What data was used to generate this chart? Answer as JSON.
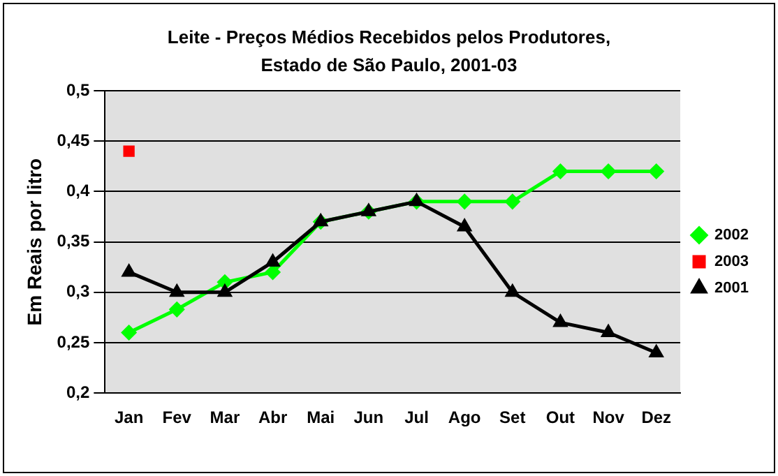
{
  "chart_data": {
    "type": "line",
    "title": "Leite - Preços Médios Recebidos pelos Produtores, Estado de São Paulo, 2001-03",
    "ylabel": "Em Reais por litro",
    "categories": [
      "Jan",
      "Fev",
      "Mar",
      "Abr",
      "Mai",
      "Jun",
      "Jul",
      "Ago",
      "Set",
      "Out",
      "Nov",
      "Dez"
    ],
    "series": [
      {
        "name": "2002",
        "color": "#00ff00",
        "marker": "diamond",
        "values": [
          0.26,
          0.283,
          0.31,
          0.32,
          0.37,
          0.38,
          0.39,
          0.39,
          0.39,
          0.42,
          0.42,
          0.42
        ]
      },
      {
        "name": "2003",
        "color": "#ff0000",
        "marker": "square",
        "values": [
          0.44,
          null,
          null,
          null,
          null,
          null,
          null,
          null,
          null,
          null,
          null,
          null
        ]
      },
      {
        "name": "2001",
        "color": "#000000",
        "marker": "triangle",
        "values": [
          0.32,
          0.3,
          0.3,
          0.33,
          0.37,
          0.38,
          0.39,
          0.365,
          0.3,
          0.27,
          0.26,
          0.24
        ]
      }
    ],
    "ylim": [
      0.2,
      0.5
    ],
    "yticks": [
      {
        "value": 0.2,
        "label": "0,2"
      },
      {
        "value": 0.25,
        "label": "0,25"
      },
      {
        "value": 0.3,
        "label": "0,3"
      },
      {
        "value": 0.35,
        "label": "0,35"
      },
      {
        "value": 0.4,
        "label": "0,4"
      },
      {
        "value": 0.45,
        "label": "0,45"
      },
      {
        "value": 0.5,
        "label": "0,5"
      }
    ],
    "grid": "y",
    "legend": "right"
  }
}
